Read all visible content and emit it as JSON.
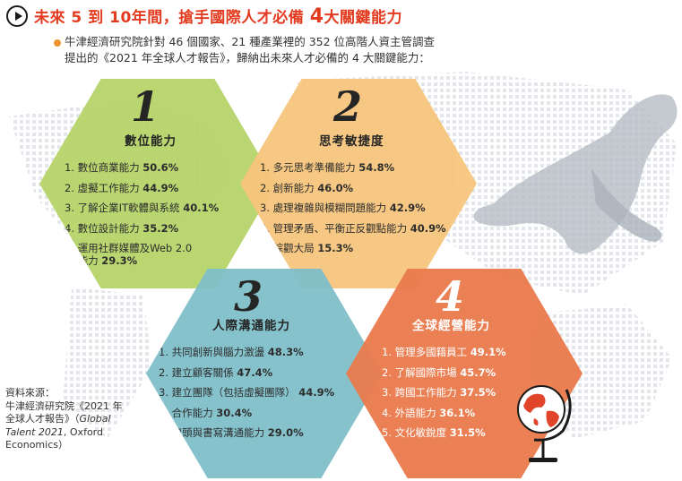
{
  "header": {
    "title_prefix": "未來",
    "title_num1": "5",
    "title_mid1": "到",
    "title_num2": "10",
    "title_mid2": "年間，搶手國際人才必備",
    "title_num3": "4",
    "title_suffix": "大關鍵能力"
  },
  "intro": {
    "line1": "牛津經濟研究院針對 46 個國家、21 種產業裡的 352 位高階人資主管調查",
    "line2": "提出的《2021 年全球人才報告》，歸納出未來人才必備的 4 大關鍵能力："
  },
  "hexagons": [
    {
      "number": "1",
      "name": "數位能力",
      "items": [
        {
          "label": "1. 數位商業能力",
          "pct": "50.6%"
        },
        {
          "label": "2. 虛擬工作能力",
          "pct": "44.9%"
        },
        {
          "label": "3. 了解企業IT軟體與系統",
          "pct": "40.1%"
        },
        {
          "label": "4. 數位設計能力",
          "pct": "35.2%"
        },
        {
          "label": "5. 運用社群媒體及Web 2.0",
          "label2": "能力",
          "pct": "29.3%"
        }
      ],
      "color": "#b6d46a"
    },
    {
      "number": "2",
      "name": "思考敏捷度",
      "items": [
        {
          "label": "1. 多元思考準備能力",
          "pct": "54.8%"
        },
        {
          "label": "2. 創新能力",
          "pct": "46.0%"
        },
        {
          "label": "3. 處理複雜與模糊問題能力",
          "pct": "42.9%"
        },
        {
          "label": "4. 管理矛盾、平衡正反觀點能力",
          "pct": "40.9%"
        },
        {
          "label": "5. 綜觀大局",
          "pct": "15.3%"
        }
      ],
      "color": "#f7c67d"
    },
    {
      "number": "3",
      "name": "人際溝通能力",
      "items": [
        {
          "label": "1. 共同創新與腦力激盪",
          "pct": "48.3%"
        },
        {
          "label": "2. 建立顧客關係",
          "pct": "47.4%"
        },
        {
          "label": "3. 建立團隊（包括虛擬團隊）",
          "pct": "44.9%"
        },
        {
          "label": "4. 合作能力",
          "pct": "30.4%"
        },
        {
          "label": "5. 口頭與書寫溝通能力",
          "pct": "29.0%"
        }
      ],
      "color": "#7fbfc9"
    },
    {
      "number": "4",
      "name": "全球經營能力",
      "items": [
        {
          "label": "1. 管理多國籍員工",
          "pct": "49.1%"
        },
        {
          "label": "2. 了解國際市場",
          "pct": "45.7%"
        },
        {
          "label": "3. 跨國工作能力",
          "pct": "37.5%"
        },
        {
          "label": "4. 外語能力",
          "pct": "36.1%"
        },
        {
          "label": "5. 文化敏銳度",
          "pct": "31.5%"
        }
      ],
      "color": "#ea7b4e"
    }
  ],
  "source": {
    "line1": "資料來源：",
    "line2": "牛津經濟研究院《2021 年",
    "line3a": "全球人才報告》（",
    "line3b": "Global",
    "line4a": "Talent 2021",
    "line4b": ", Oxford",
    "line5": "Economics）"
  },
  "icons": [
    "play-icon",
    "globe-icon",
    "puma-illustration",
    "bullet-dot"
  ]
}
